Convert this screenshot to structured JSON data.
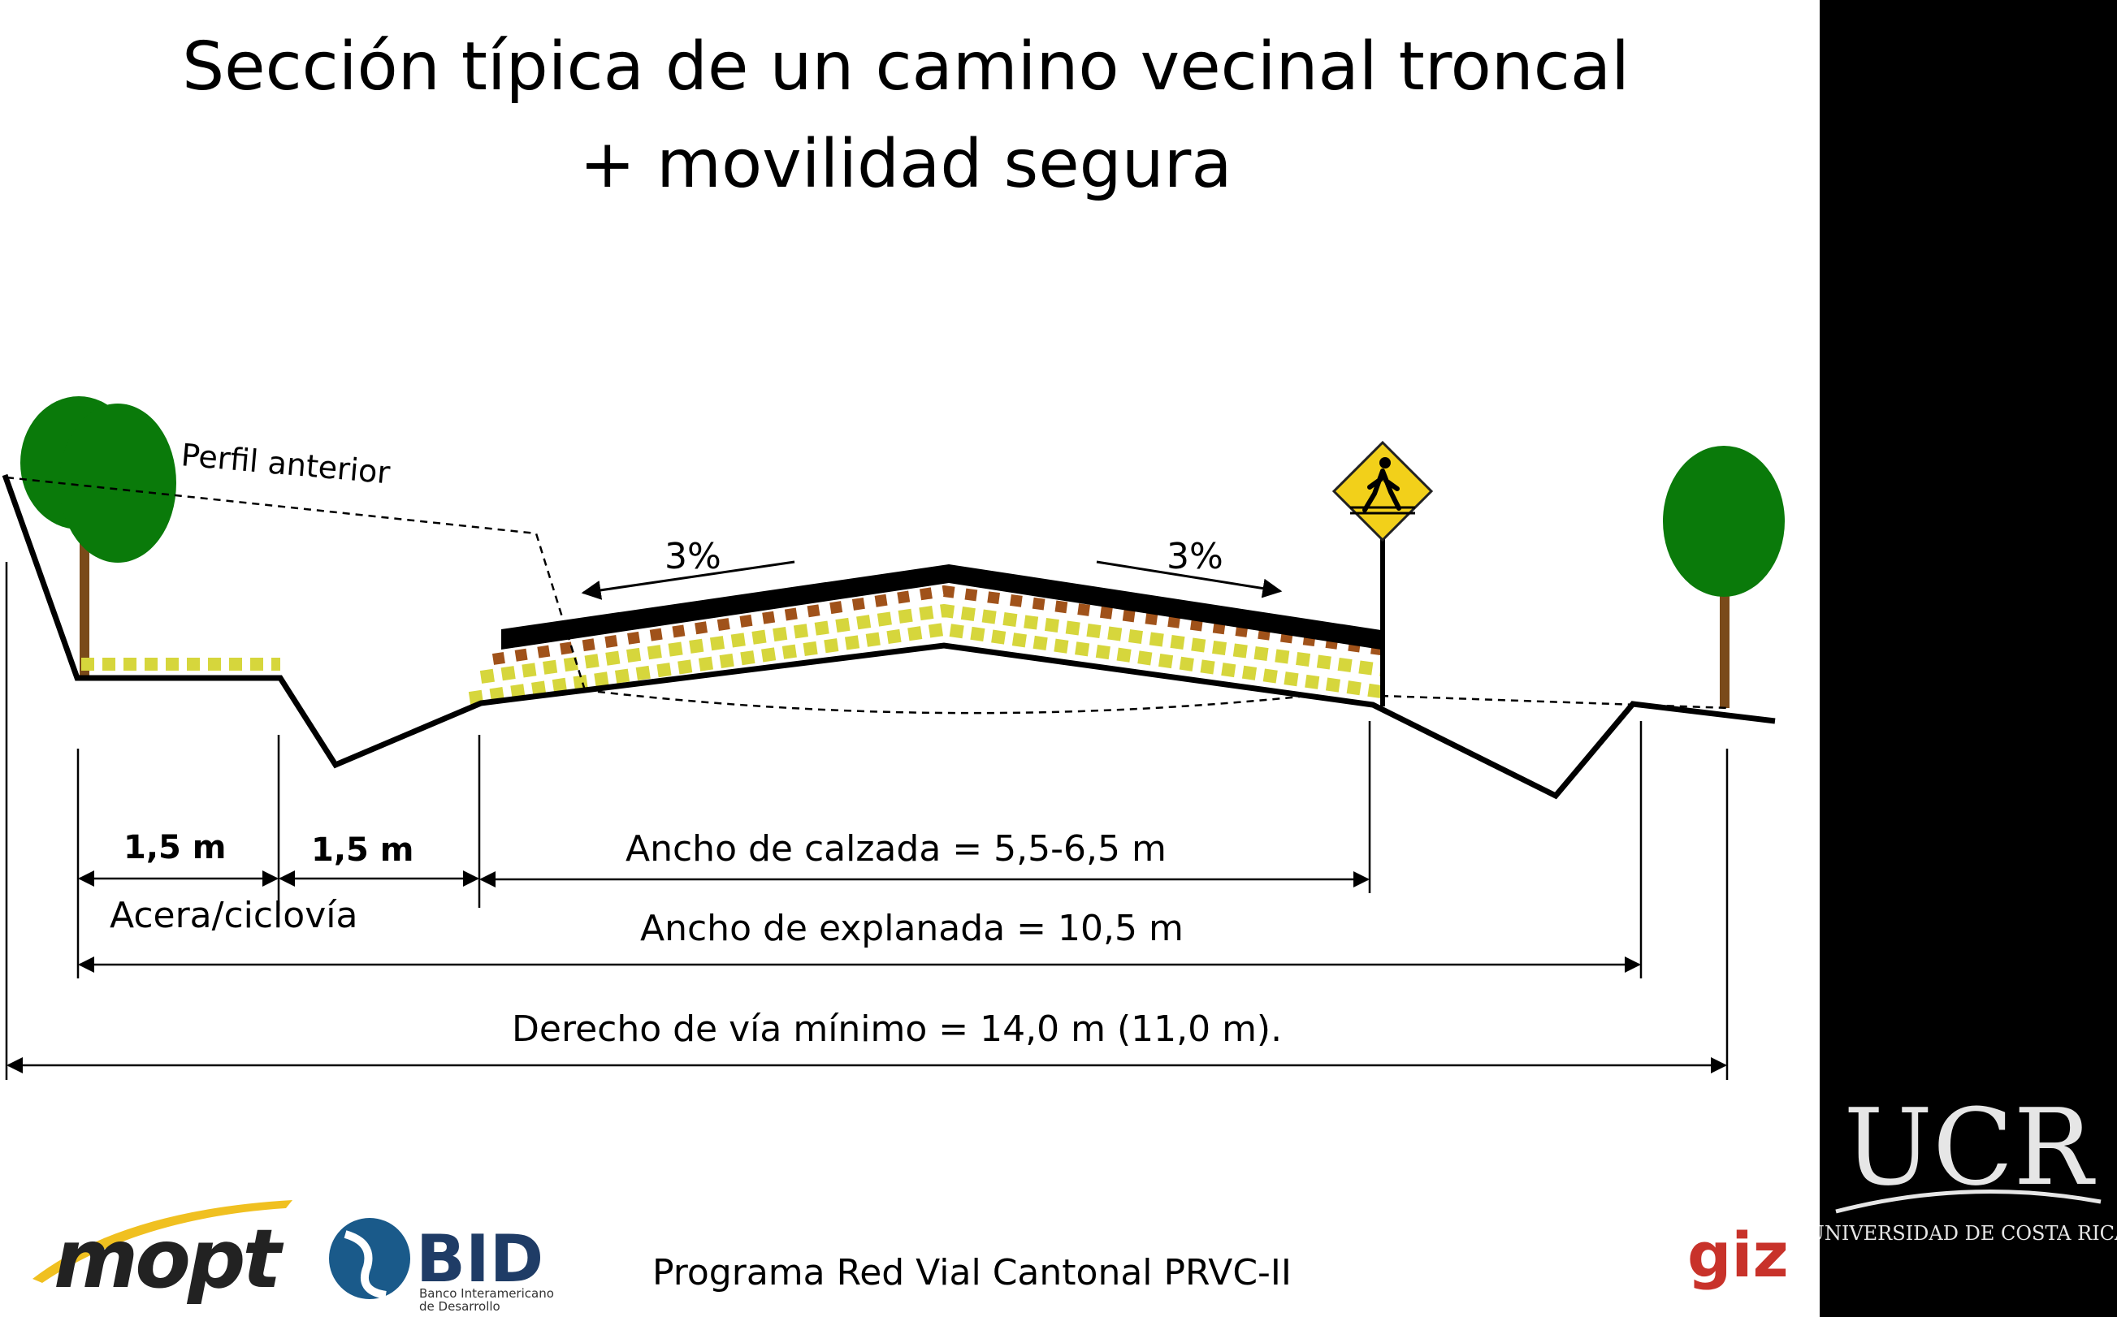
{
  "title": {
    "line1": "Sección típica de un camino vecinal troncal",
    "line2": "+ movilidad segura"
  },
  "diagram": {
    "profile_label": "Perfil anterior",
    "slope_left": "3%",
    "slope_right": "3%",
    "dim_sidewalk": "1,5 m",
    "dim_ditch": "1,5 m",
    "sidewalk_label": "Acera/ciclovía",
    "carriageway_label": "Ancho de calzada = 5,5-6,5 m",
    "embankment_label": "Ancho de explanada = 10,5 m",
    "row_label": "Derecho de vía mínimo = 14,0 m (11,0 m)."
  },
  "footer": {
    "program": "Programa Red Vial Cantonal PRVC-II",
    "logo_mopt": "mopt",
    "logo_bid": "BID",
    "logo_bid_sub1": "Banco Interamericano",
    "logo_bid_sub2": "de Desarrollo",
    "logo_giz": "giz",
    "logo_ucr": "UCR",
    "logo_ucr_sub": "UNIVERSIDAD DE COSTA RICA"
  },
  "colors": {
    "tree_green": "#0a7a0a",
    "trunk_brown": "#7a4a1a",
    "base_yellow": "#d6d63c",
    "subbase_brown": "#a0521a",
    "sign_yellow": "#f2d01a",
    "giz_red": "#c8322a"
  }
}
